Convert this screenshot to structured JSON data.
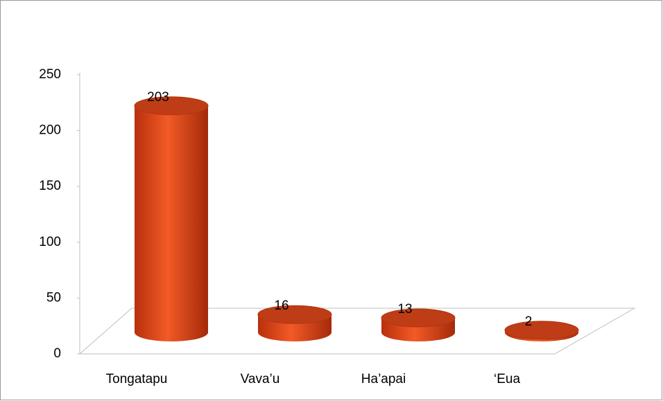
{
  "chart_data": {
    "type": "bar",
    "categories": [
      "Tongatapu",
      "Vava’u",
      "Ha’apai",
      "‘Eua"
    ],
    "values": [
      203,
      16,
      13,
      2
    ],
    "color": "#e0481c",
    "ylim": [
      0,
      250
    ],
    "yticks": [
      0,
      50,
      100,
      150,
      200,
      250
    ]
  }
}
